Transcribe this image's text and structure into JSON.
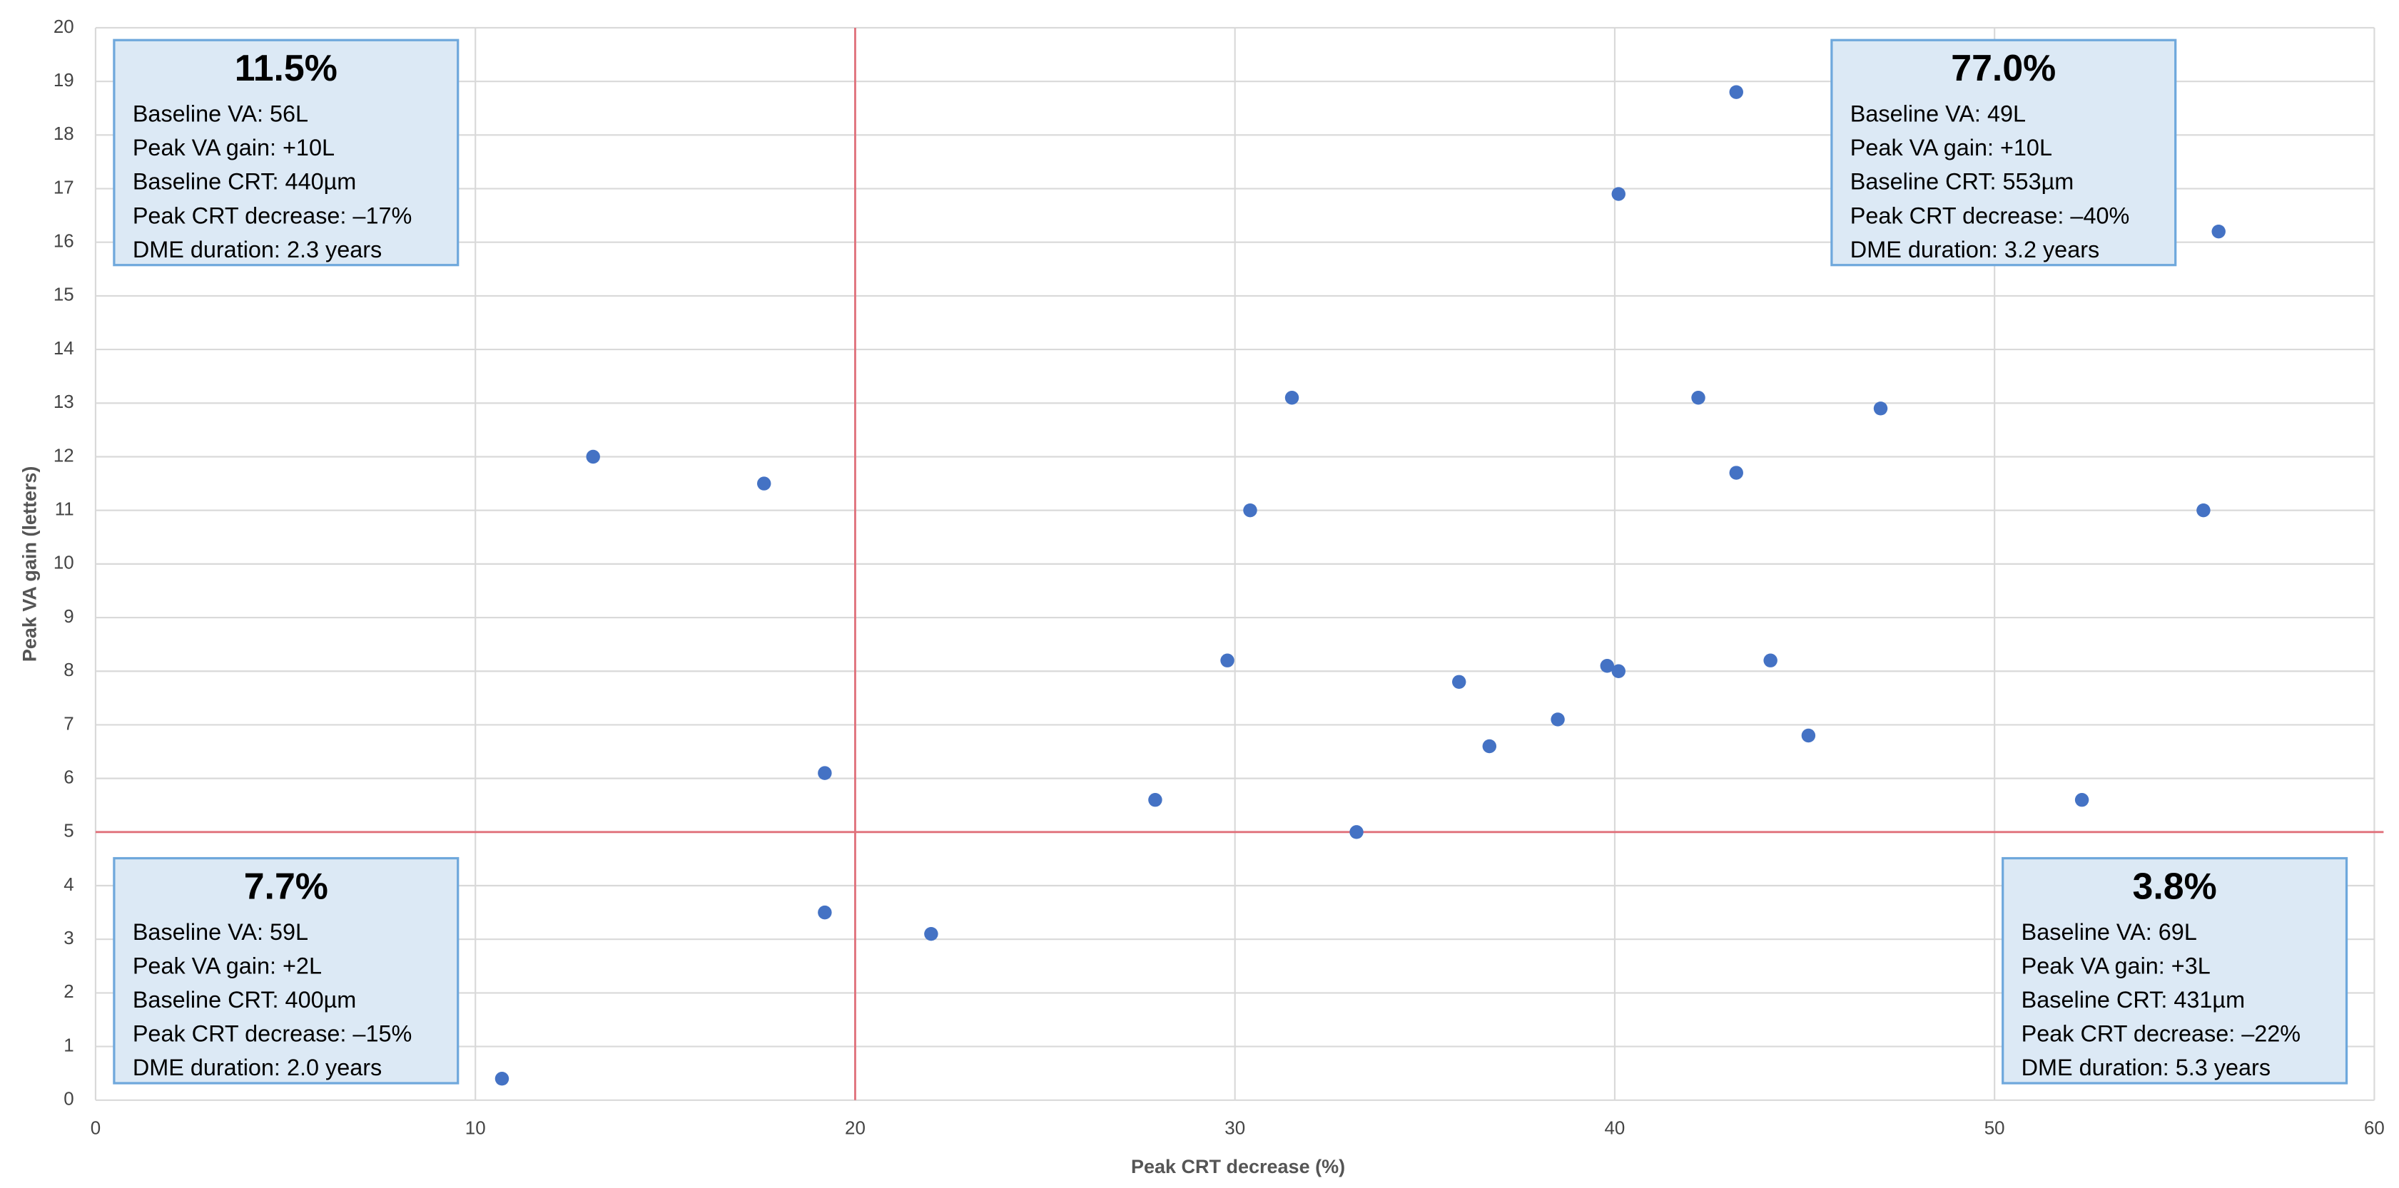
{
  "chart_data": {
    "type": "scatter",
    "x_label": "Peak CRT decrease (%)",
    "y_label": "Peak VA gain (letters)",
    "xlim": [
      0,
      60
    ],
    "xticks": [
      0,
      10,
      20,
      30,
      40,
      50,
      60
    ],
    "ylim": [
      0,
      20
    ],
    "yticks": [
      0,
      1,
      2,
      3,
      4,
      5,
      6,
      7,
      8,
      9,
      10,
      11,
      12,
      13,
      14,
      15,
      16,
      17,
      18,
      19,
      20
    ],
    "grid": true,
    "color": "#4472c4",
    "x": [
      13.1,
      17.6,
      19.2,
      19.2,
      22.0,
      10.7,
      27.9,
      29.8,
      30.4,
      31.5,
      33.2,
      35.9,
      36.7,
      38.5,
      39.8,
      40.1,
      40.1,
      42.2,
      43.2,
      43.2,
      44.1,
      45.1,
      47.0,
      52.3,
      55.5,
      55.9
    ],
    "values": [
      12.0,
      11.5,
      6.1,
      3.5,
      3.1,
      0.4,
      5.6,
      8.2,
      11.0,
      13.1,
      5.0,
      7.8,
      6.6,
      7.1,
      8.1,
      8.0,
      16.9,
      13.1,
      11.7,
      18.8,
      8.2,
      6.8,
      12.9,
      5.6,
      11.0,
      16.2
    ],
    "reference_lines": {
      "x": 20,
      "y": 5,
      "color": "#e0707a"
    },
    "annotations": [
      {
        "corner": "top-left",
        "title": "11.5%",
        "lines": [
          "Baseline VA: 56L",
          "Peak VA gain: +10L",
          "Baseline CRT: 440µm",
          "Peak CRT decrease: –17%",
          "DME duration: 2.3 years"
        ]
      },
      {
        "corner": "top-right",
        "title": "77.0%",
        "lines": [
          "Baseline VA: 49L",
          "Peak VA gain: +10L",
          "Baseline CRT: 553µm",
          "Peak CRT decrease: –40%",
          "DME duration: 3.2 years"
        ]
      },
      {
        "corner": "bottom-left",
        "title": "7.7%",
        "lines": [
          "Baseline VA: 59L",
          "Peak VA gain: +2L",
          "Baseline CRT: 400µm",
          "Peak CRT decrease: –15%",
          "DME duration: 2.0 years"
        ]
      },
      {
        "corner": "bottom-right",
        "title": "3.8%",
        "lines": [
          "Baseline VA: 69L",
          "Peak VA gain: +3L",
          "Baseline CRT: 431µm",
          "Peak CRT decrease: –22%",
          "DME duration: 5.3 years"
        ]
      }
    ]
  }
}
